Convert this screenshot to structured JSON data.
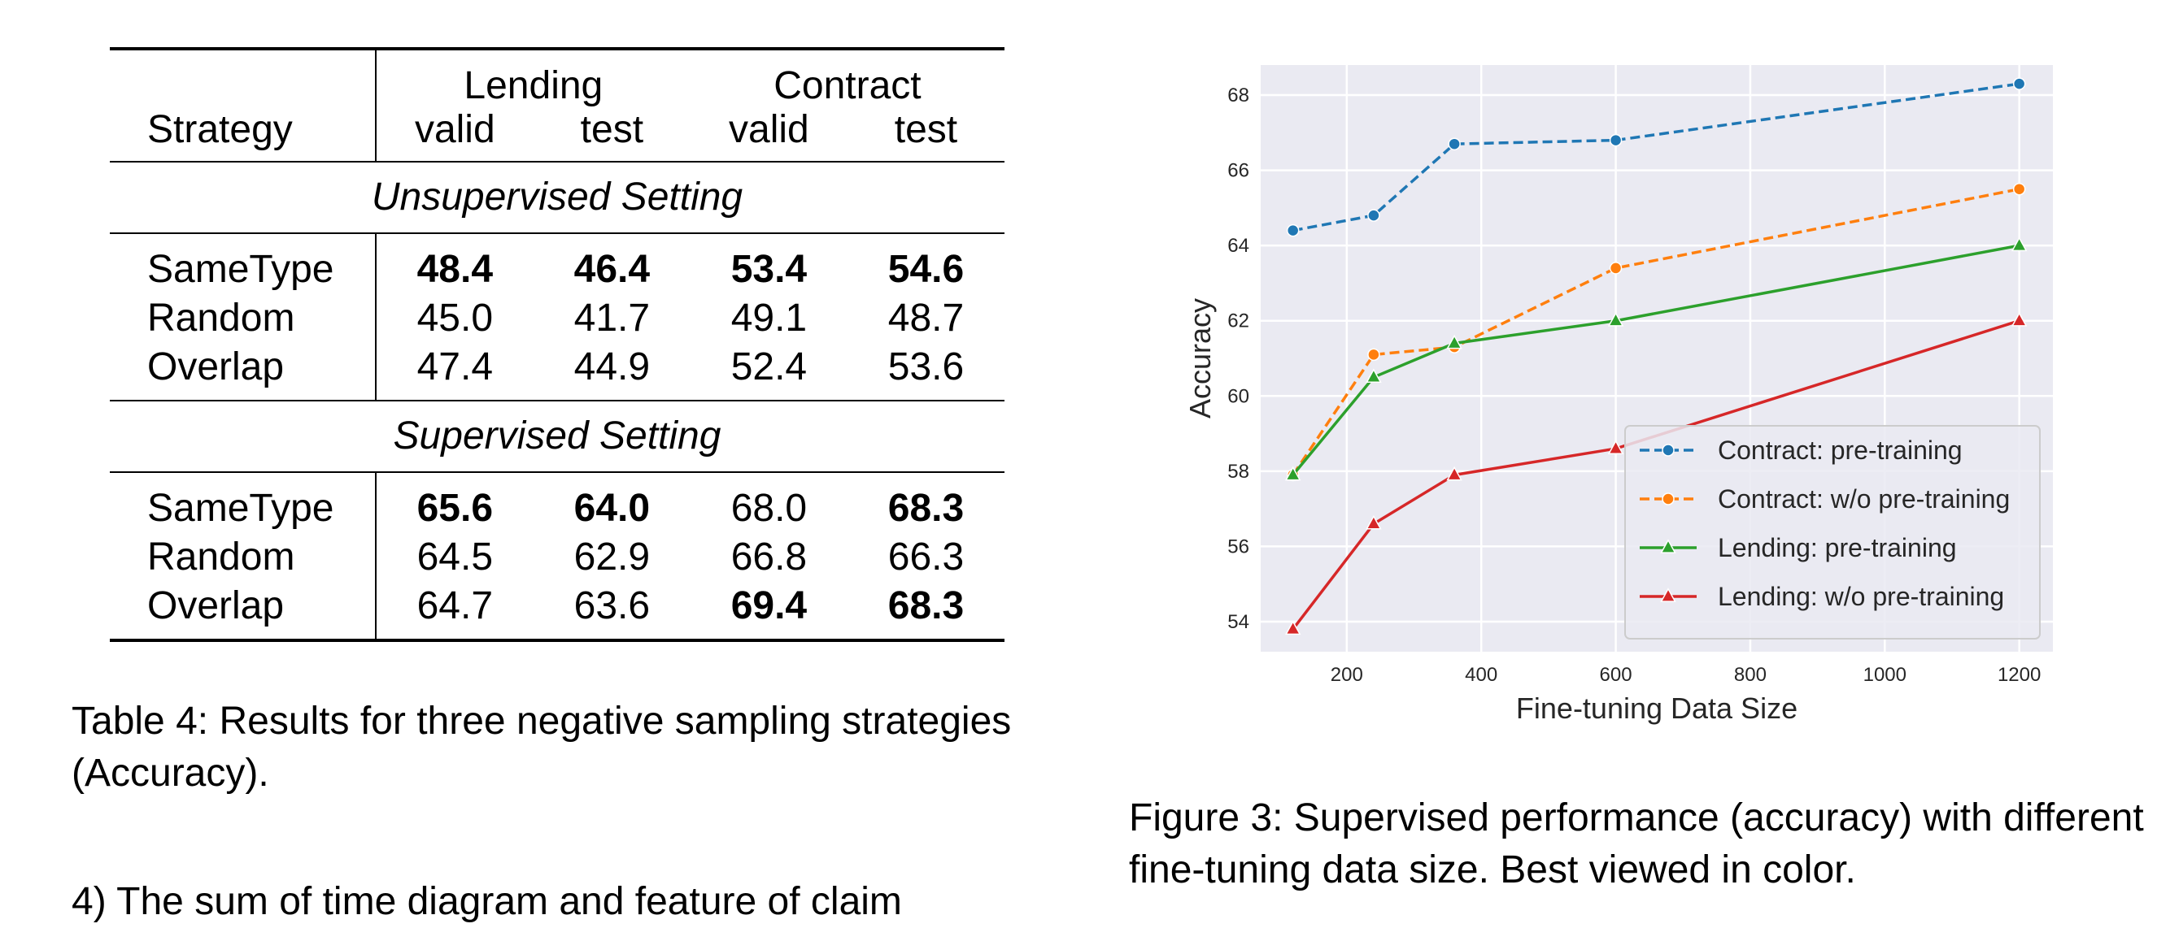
{
  "table": {
    "strategy_header": "Strategy",
    "groups": [
      "Lending",
      "Contract"
    ],
    "subheaders": [
      "valid",
      "test",
      "valid",
      "test"
    ],
    "sections": [
      {
        "title": "Unsupervised Setting",
        "rows": [
          {
            "label": "SameType",
            "values": [
              "48.4",
              "46.4",
              "53.4",
              "54.6"
            ],
            "bold": [
              true,
              true,
              true,
              true
            ]
          },
          {
            "label": "Random",
            "values": [
              "45.0",
              "41.7",
              "49.1",
              "48.7"
            ],
            "bold": [
              false,
              false,
              false,
              false
            ]
          },
          {
            "label": "Overlap",
            "values": [
              "47.4",
              "44.9",
              "52.4",
              "53.6"
            ],
            "bold": [
              false,
              false,
              false,
              false
            ]
          }
        ]
      },
      {
        "title": "Supervised Setting",
        "rows": [
          {
            "label": "SameType",
            "values": [
              "65.6",
              "64.0",
              "68.0",
              "68.3"
            ],
            "bold": [
              true,
              true,
              false,
              true
            ]
          },
          {
            "label": "Random",
            "values": [
              "64.5",
              "62.9",
              "66.8",
              "66.3"
            ],
            "bold": [
              false,
              false,
              false,
              false
            ]
          },
          {
            "label": "Overlap",
            "values": [
              "64.7",
              "63.6",
              "69.4",
              "68.3"
            ],
            "bold": [
              false,
              false,
              true,
              true
            ]
          }
        ]
      }
    ],
    "caption": "Table 4: Results for three negative sampling strategies (Accuracy)."
  },
  "figure_caption": "Figure 3: Supervised performance (accuracy) with different fine-tuning data size. Best viewed in color.",
  "cut_text": "4) The sum of time diagram and feature of claim",
  "chart_data": {
    "type": "line",
    "xlabel": "Fine-tuning Data Size",
    "ylabel": "Accuracy",
    "xlim": [
      72,
      1250
    ],
    "ylim": [
      53.2,
      68.8
    ],
    "xticks": [
      200,
      400,
      600,
      800,
      1000,
      1200
    ],
    "yticks": [
      54,
      56,
      58,
      60,
      62,
      64,
      66,
      68
    ],
    "grid": true,
    "legend_position": "lower-right",
    "x": [
      120,
      240,
      360,
      600,
      1200
    ],
    "series": [
      {
        "name": "Contract: pre-training",
        "values": [
          64.4,
          64.8,
          66.7,
          66.8,
          68.3
        ],
        "color": "#1f77b4",
        "dash": "dashed",
        "marker": "circle"
      },
      {
        "name": "Contract: w/o pre-training",
        "values": [
          57.9,
          61.1,
          61.3,
          63.4,
          65.5
        ],
        "color": "#ff7f0e",
        "dash": "dashed",
        "marker": "circle"
      },
      {
        "name": "Lending: pre-training",
        "values": [
          57.9,
          60.5,
          61.4,
          62.0,
          64.0
        ],
        "color": "#2ca02c",
        "dash": "solid",
        "marker": "triangle"
      },
      {
        "name": "Lending: w/o pre-training",
        "values": [
          53.8,
          56.6,
          57.9,
          58.6,
          62.0
        ],
        "color": "#d62728",
        "dash": "solid",
        "marker": "triangle"
      }
    ]
  }
}
